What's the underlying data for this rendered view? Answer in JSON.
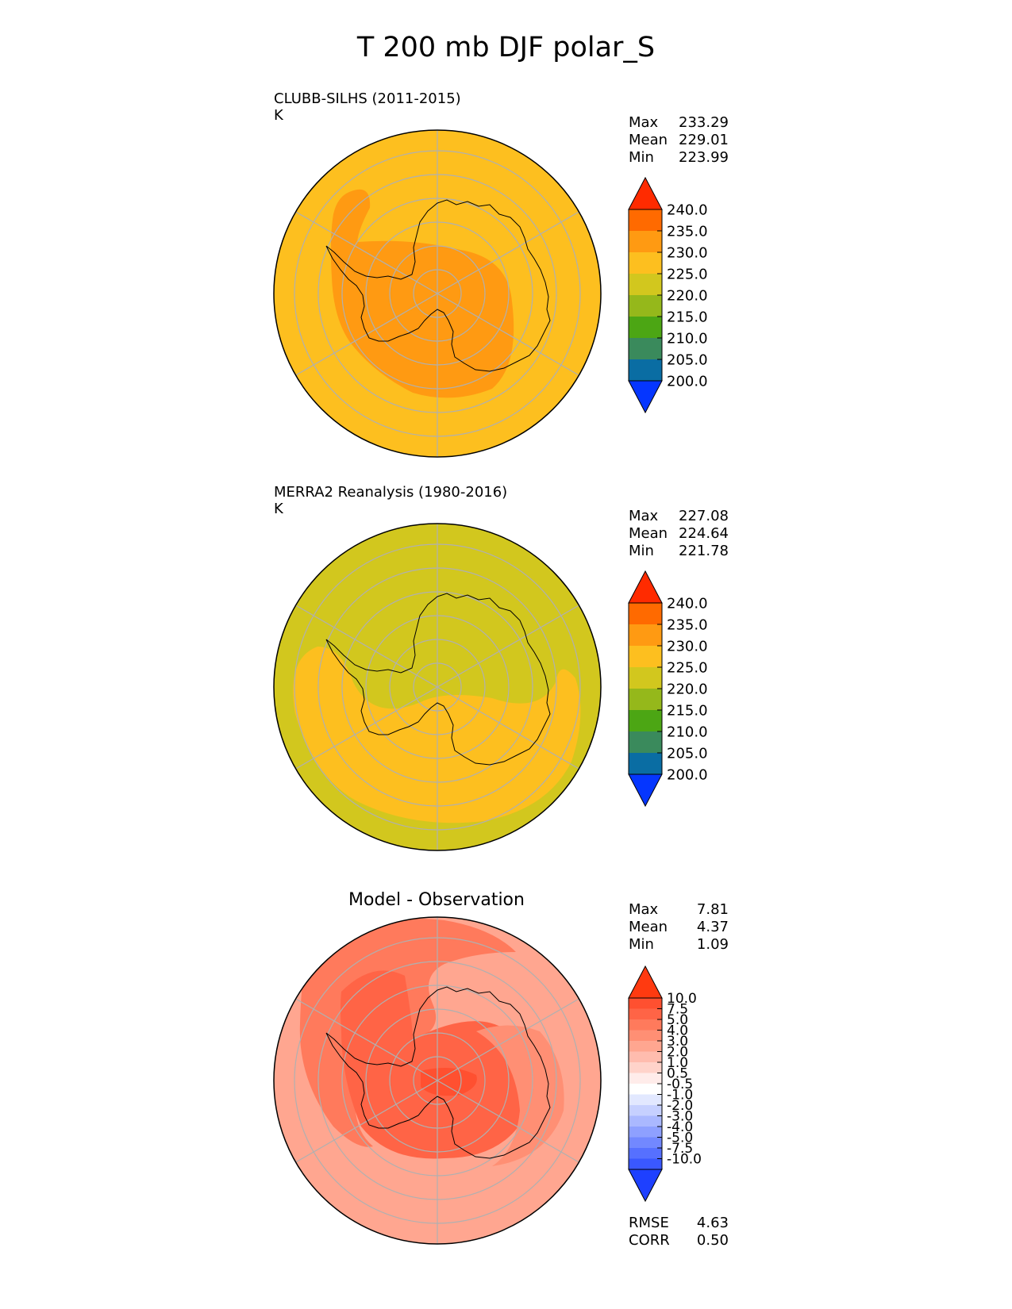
{
  "title": "T 200 mb DJF polar_S",
  "panels": [
    {
      "id": "model",
      "label": "CLUBB-SILHS (2011-2015)",
      "units": "K",
      "stats": [
        {
          "k": "Max",
          "v": "233.29"
        },
        {
          "k": "Mean",
          "v": "229.01"
        },
        {
          "k": "Min",
          "v": "223.99"
        }
      ],
      "colorbar_ticks": [
        "240.0",
        "235.0",
        "230.0",
        "225.0",
        "220.0",
        "215.0",
        "210.0",
        "205.0",
        "200.0"
      ],
      "colorbar_colors": [
        "#ff2b00",
        "#ff6a00",
        "#ff9a12",
        "#fdbf1f",
        "#d2c71e",
        "#95b81b",
        "#4ca614",
        "#3a8a5c",
        "#0a6da3",
        "#0536ff"
      ]
    },
    {
      "id": "obs",
      "label": "MERRA2 Reanalysis (1980-2016)",
      "units": "K",
      "stats": [
        {
          "k": "Max",
          "v": "227.08"
        },
        {
          "k": "Mean",
          "v": "224.64"
        },
        {
          "k": "Min",
          "v": "221.78"
        }
      ],
      "colorbar_ticks": [
        "240.0",
        "235.0",
        "230.0",
        "225.0",
        "220.0",
        "215.0",
        "210.0",
        "205.0",
        "200.0"
      ],
      "colorbar_colors": [
        "#ff2b00",
        "#ff6a00",
        "#ff9a12",
        "#fdbf1f",
        "#d2c71e",
        "#95b81b",
        "#4ca614",
        "#3a8a5c",
        "#0a6da3",
        "#0536ff"
      ]
    },
    {
      "id": "diff",
      "label": "Model - Observation",
      "stats": [
        {
          "k": "Max",
          "v": "7.81"
        },
        {
          "k": "Mean",
          "v": "4.37"
        },
        {
          "k": "Min",
          "v": "1.09"
        }
      ],
      "colorbar_ticks": [
        "10.0",
        "7.5",
        "5.0",
        "4.0",
        "3.0",
        "2.0",
        "1.0",
        "0.5",
        "-0.5",
        "-1.0",
        "-2.0",
        "-3.0",
        "-4.0",
        "-5.0",
        "-7.5",
        "-10.0"
      ],
      "colorbar_colors": [
        "#ff3a10",
        "#ff5030",
        "#ff6446",
        "#ff7a5c",
        "#ff8f74",
        "#ffa690",
        "#ffbcae",
        "#ffd3ca",
        "#ffecea",
        "#ffffff",
        "#e2e8ff",
        "#c6d0ff",
        "#aab8ff",
        "#8ea0ff",
        "#7288ff",
        "#5670ff",
        "#3a58ff",
        "#1e40ff"
      ],
      "extra_stats": [
        {
          "k": "RMSE",
          "v": "4.63"
        },
        {
          "k": "CORR",
          "v": "0.50"
        }
      ]
    }
  ],
  "chart_data": {
    "type": "heatmap",
    "title": "T 200 mb DJF polar_S",
    "projection": "south polar stereographic",
    "grid": true,
    "subplots": [
      {
        "name": "CLUBB-SILHS (2011-2015)",
        "units": "K",
        "max": 233.29,
        "mean": 229.01,
        "min": 223.99,
        "levels": [
          200,
          205,
          210,
          215,
          220,
          225,
          230,
          235,
          240
        ]
      },
      {
        "name": "MERRA2 Reanalysis (1980-2016)",
        "units": "K",
        "max": 227.08,
        "mean": 224.64,
        "min": 221.78,
        "levels": [
          200,
          205,
          210,
          215,
          220,
          225,
          230,
          235,
          240
        ]
      },
      {
        "name": "Model - Observation",
        "max": 7.81,
        "mean": 4.37,
        "min": 1.09,
        "rmse": 4.63,
        "corr": 0.5,
        "levels": [
          -10,
          -7.5,
          -5,
          -4,
          -3,
          -2,
          -1,
          -0.5,
          0.5,
          1,
          2,
          3,
          4,
          5,
          7.5,
          10
        ]
      }
    ]
  }
}
